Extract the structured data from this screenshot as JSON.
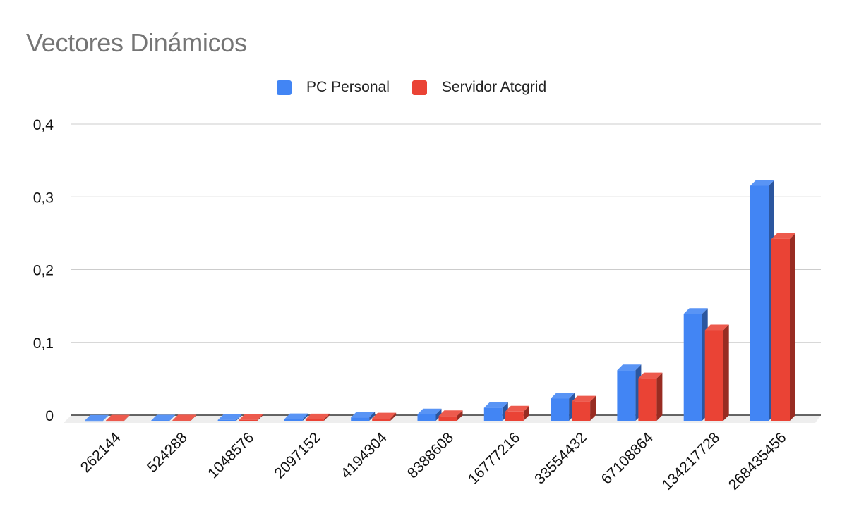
{
  "chart_data": {
    "type": "bar",
    "title": "Vectores Dinámicos",
    "xlabel": "",
    "ylabel": "",
    "categories": [
      "262144",
      "524288",
      "1048576",
      "2097152",
      "4194304",
      "8388608",
      "16777216",
      "33554432",
      "67108864",
      "134217728",
      "268435456"
    ],
    "series": [
      {
        "name": "PC Personal",
        "color": "#4285F4",
        "values": [
          0.0003,
          0.0005,
          0.0011,
          0.0023,
          0.0047,
          0.009,
          0.0178,
          0.0305,
          0.0695,
          0.147,
          0.323
        ]
      },
      {
        "name": "Servidor Atcgrid",
        "color": "#EA4335",
        "values": [
          0.0004,
          0.0006,
          0.0012,
          0.002,
          0.0033,
          0.0065,
          0.0128,
          0.0265,
          0.0585,
          0.1245,
          0.25
        ]
      }
    ],
    "ylim": [
      0,
      0.4
    ],
    "yticks": [
      "0",
      "0,1",
      "0,2",
      "0,3",
      "0,4"
    ],
    "grid": true,
    "legend_position": "top-center",
    "style": "3d"
  }
}
